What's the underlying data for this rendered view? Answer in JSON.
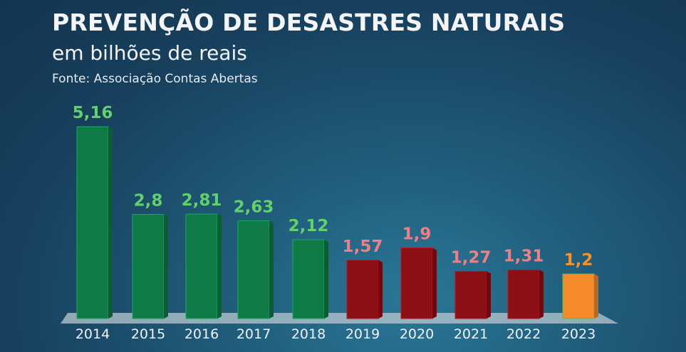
{
  "chart_data": {
    "type": "bar",
    "title": "PREVENÇÃO DE DESASTRES NATURAIS",
    "subtitle": "em bilhões de reais",
    "source": "Fonte: Associação Contas Abertas",
    "xlabel": "",
    "ylabel": "",
    "ylim": [
      0,
      5.5
    ],
    "grid": false,
    "categories": [
      "2014",
      "2015",
      "2016",
      "2017",
      "2018",
      "2019",
      "2020",
      "2021",
      "2022",
      "2023"
    ],
    "values": [
      5.16,
      2.8,
      2.81,
      2.63,
      2.12,
      1.57,
      1.9,
      1.27,
      1.31,
      1.2
    ],
    "value_labels": [
      "5,16",
      "2,8",
      "2,81",
      "2,63",
      "2,12",
      "1,57",
      "1,9",
      "1,27",
      "1,31",
      "1,2"
    ],
    "bar_colors": [
      "#0f7a45",
      "#0f7a45",
      "#0f7a45",
      "#0f7a45",
      "#0f7a45",
      "#8a1016",
      "#8a1016",
      "#8a1016",
      "#8a1016",
      "#f58a2a"
    ],
    "label_colors": [
      "#62d06c",
      "#62d06c",
      "#62d06c",
      "#62d06c",
      "#62d06c",
      "#f27d84",
      "#f27d84",
      "#f27d84",
      "#f27d84",
      "#f5922e"
    ]
  }
}
